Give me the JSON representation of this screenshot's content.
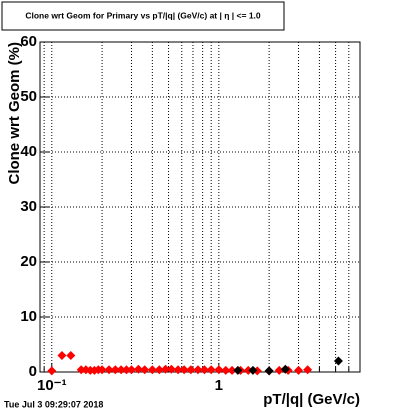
{
  "chart_data": {
    "type": "scatter",
    "title": "Clone wrt Geom for Primary vs pT/|q| (GeV/c) at | η | <= 1.0",
    "x_label": "pT/|q| (GeV/c)",
    "y_label": "Clone wrt Geom (%)",
    "footer": "Tue Jul  3 09:29:07 2018",
    "log_x": true,
    "grid": true,
    "xlim": [
      0.085,
      7
    ],
    "ylim": [
      0,
      60
    ],
    "xticks": [
      {
        "value": 0.1,
        "label": "10⁻¹"
      },
      1
    ],
    "xminor": [
      0.09,
      0.2,
      0.3,
      0.4,
      0.5,
      0.6,
      0.7,
      0.8,
      0.9,
      2,
      3,
      4,
      5,
      6
    ],
    "yticks": [
      0,
      10,
      20,
      30,
      40,
      50,
      60
    ],
    "series": [
      {
        "color": "#ff0000",
        "x": [
          0.1,
          0.115,
          0.13,
          0.15,
          0.16,
          0.17,
          0.18,
          0.19,
          0.2,
          0.22,
          0.24,
          0.26,
          0.28,
          0.3,
          0.33,
          0.36,
          0.4,
          0.44,
          0.48,
          0.52,
          0.57,
          0.62,
          0.68,
          0.75,
          0.82,
          0.9,
          1.0,
          1.1,
          1.2,
          1.35,
          1.5,
          1.7,
          2.0,
          2.3,
          2.6,
          3.0,
          3.4
        ],
        "values": [
          0.2,
          3,
          3,
          0.4,
          0.4,
          0.3,
          0.3,
          0.4,
          0.4,
          0.4,
          0.4,
          0.4,
          0.4,
          0.4,
          0.5,
          0.4,
          0.4,
          0.4,
          0.5,
          0.5,
          0.4,
          0.4,
          0.4,
          0.4,
          0.4,
          0.4,
          0.4,
          0.3,
          0.3,
          0.3,
          0.3,
          0.2,
          0.2,
          0.3,
          0.3,
          0.3,
          0.4
        ]
      },
      {
        "color": "#000000",
        "x": [
          1.3,
          1.6,
          2.0,
          2.5,
          5.2
        ],
        "values": [
          0.3,
          0.3,
          0.2,
          0.5,
          2
        ]
      }
    ]
  }
}
